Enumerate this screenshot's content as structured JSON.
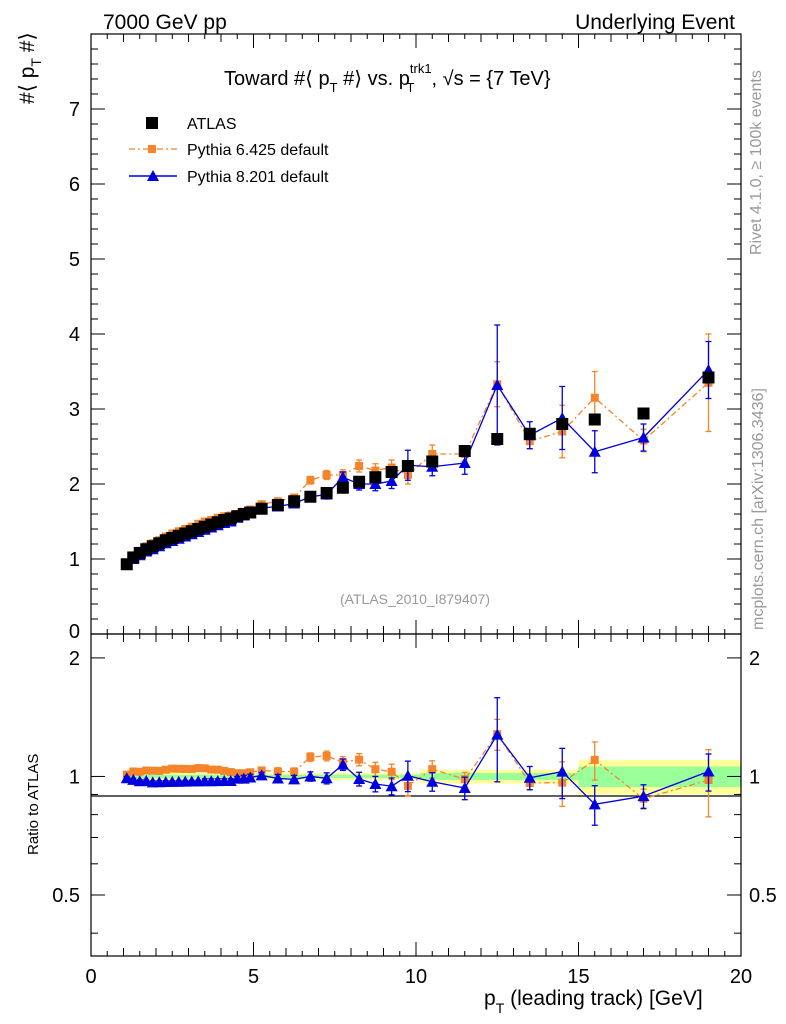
{
  "header": {
    "left": "7000 GeV pp",
    "right": "Underlying Event"
  },
  "side": {
    "rivet": "Rivet 4.1.0, ≥ 100k events",
    "mcplots": "mcplots.cern.ch [arXiv:1306.3436]"
  },
  "chart_data": {
    "type": "scatter",
    "title": "Toward #⟨ p_T #⟩ vs. p_T^trk1, √s = {7 TeV}",
    "analysis_label": "(ATLAS_2010_I879407)",
    "xlabel": "p_T (leading track) [GeV]",
    "ylabel": "#⟨ p_T #⟩",
    "ratio_ylabel": "Ratio to ATLAS",
    "xlim": [
      0,
      20
    ],
    "ylim": [
      0,
      8
    ],
    "ratio_ylim": [
      0.35,
      2.3
    ],
    "xticks": [
      0,
      5,
      10,
      15,
      20
    ],
    "yticks": [
      0,
      1,
      2,
      3,
      4,
      5,
      6,
      7
    ],
    "ratio_yticks": [
      0.5,
      1,
      2
    ],
    "legend": {
      "position": "top-left",
      "entries": [
        "ATLAS",
        "Pythia 6.425 default",
        "Pythia 8.201 default"
      ]
    },
    "colors": {
      "atlas": "#000000",
      "py6": "#f5842b",
      "py8": "#0000dd",
      "band_inner": "#99ff99",
      "band_outer": "#ffff99"
    },
    "x": [
      1.1,
      1.3,
      1.5,
      1.7,
      1.9,
      2.1,
      2.3,
      2.5,
      2.7,
      2.9,
      3.1,
      3.3,
      3.5,
      3.7,
      3.9,
      4.1,
      4.3,
      4.5,
      4.7,
      4.9,
      5.25,
      5.75,
      6.25,
      6.75,
      7.25,
      7.75,
      8.25,
      8.75,
      9.25,
      9.75,
      10.5,
      11.5,
      12.5,
      13.5,
      14.5,
      15.5,
      17.0,
      19.0
    ],
    "series": [
      {
        "name": "ATLAS",
        "values": [
          0.93,
          1.02,
          1.08,
          1.13,
          1.17,
          1.21,
          1.25,
          1.28,
          1.31,
          1.34,
          1.37,
          1.4,
          1.43,
          1.46,
          1.49,
          1.52,
          1.54,
          1.57,
          1.6,
          1.62,
          1.67,
          1.72,
          1.77,
          1.83,
          1.88,
          1.95,
          2.03,
          2.09,
          2.16,
          2.24,
          2.3,
          2.44,
          2.6,
          2.67,
          2.8,
          2.86,
          2.94,
          3.42
        ]
      },
      {
        "name": "Pythia 6.425 default",
        "values": [
          0.94,
          1.05,
          1.11,
          1.17,
          1.21,
          1.25,
          1.3,
          1.34,
          1.37,
          1.4,
          1.43,
          1.47,
          1.5,
          1.52,
          1.55,
          1.57,
          1.58,
          1.6,
          1.63,
          1.66,
          1.73,
          1.77,
          1.82,
          2.05,
          2.12,
          2.12,
          2.24,
          2.18,
          2.22,
          2.12,
          2.4,
          2.4,
          3.33,
          2.57,
          2.7,
          3.15,
          2.58,
          3.35
        ],
        "errors": [
          0.01,
          0.01,
          0.01,
          0.01,
          0.01,
          0.01,
          0.01,
          0.01,
          0.01,
          0.01,
          0.01,
          0.01,
          0.02,
          0.02,
          0.02,
          0.02,
          0.02,
          0.02,
          0.03,
          0.03,
          0.03,
          0.04,
          0.04,
          0.05,
          0.06,
          0.07,
          0.08,
          0.09,
          0.1,
          0.12,
          0.12,
          0.1,
          0.3,
          0.1,
          0.35,
          0.35,
          0.15,
          0.65
        ]
      },
      {
        "name": "Pythia 8.201 default",
        "values": [
          0.92,
          1.0,
          1.05,
          1.1,
          1.13,
          1.17,
          1.21,
          1.24,
          1.27,
          1.3,
          1.33,
          1.36,
          1.39,
          1.42,
          1.45,
          1.48,
          1.5,
          1.55,
          1.58,
          1.61,
          1.68,
          1.7,
          1.74,
          1.83,
          1.86,
          2.09,
          2.0,
          2.0,
          2.04,
          2.25,
          2.23,
          2.28,
          3.32,
          2.65,
          2.88,
          2.43,
          2.62,
          3.52
        ],
        "errors": [
          0.01,
          0.01,
          0.01,
          0.01,
          0.01,
          0.01,
          0.01,
          0.01,
          0.01,
          0.01,
          0.01,
          0.01,
          0.02,
          0.02,
          0.02,
          0.02,
          0.02,
          0.02,
          0.03,
          0.03,
          0.03,
          0.04,
          0.04,
          0.05,
          0.06,
          0.07,
          0.08,
          0.09,
          0.1,
          0.2,
          0.12,
          0.15,
          0.8,
          0.18,
          0.42,
          0.28,
          0.18,
          0.38
        ]
      }
    ]
  }
}
